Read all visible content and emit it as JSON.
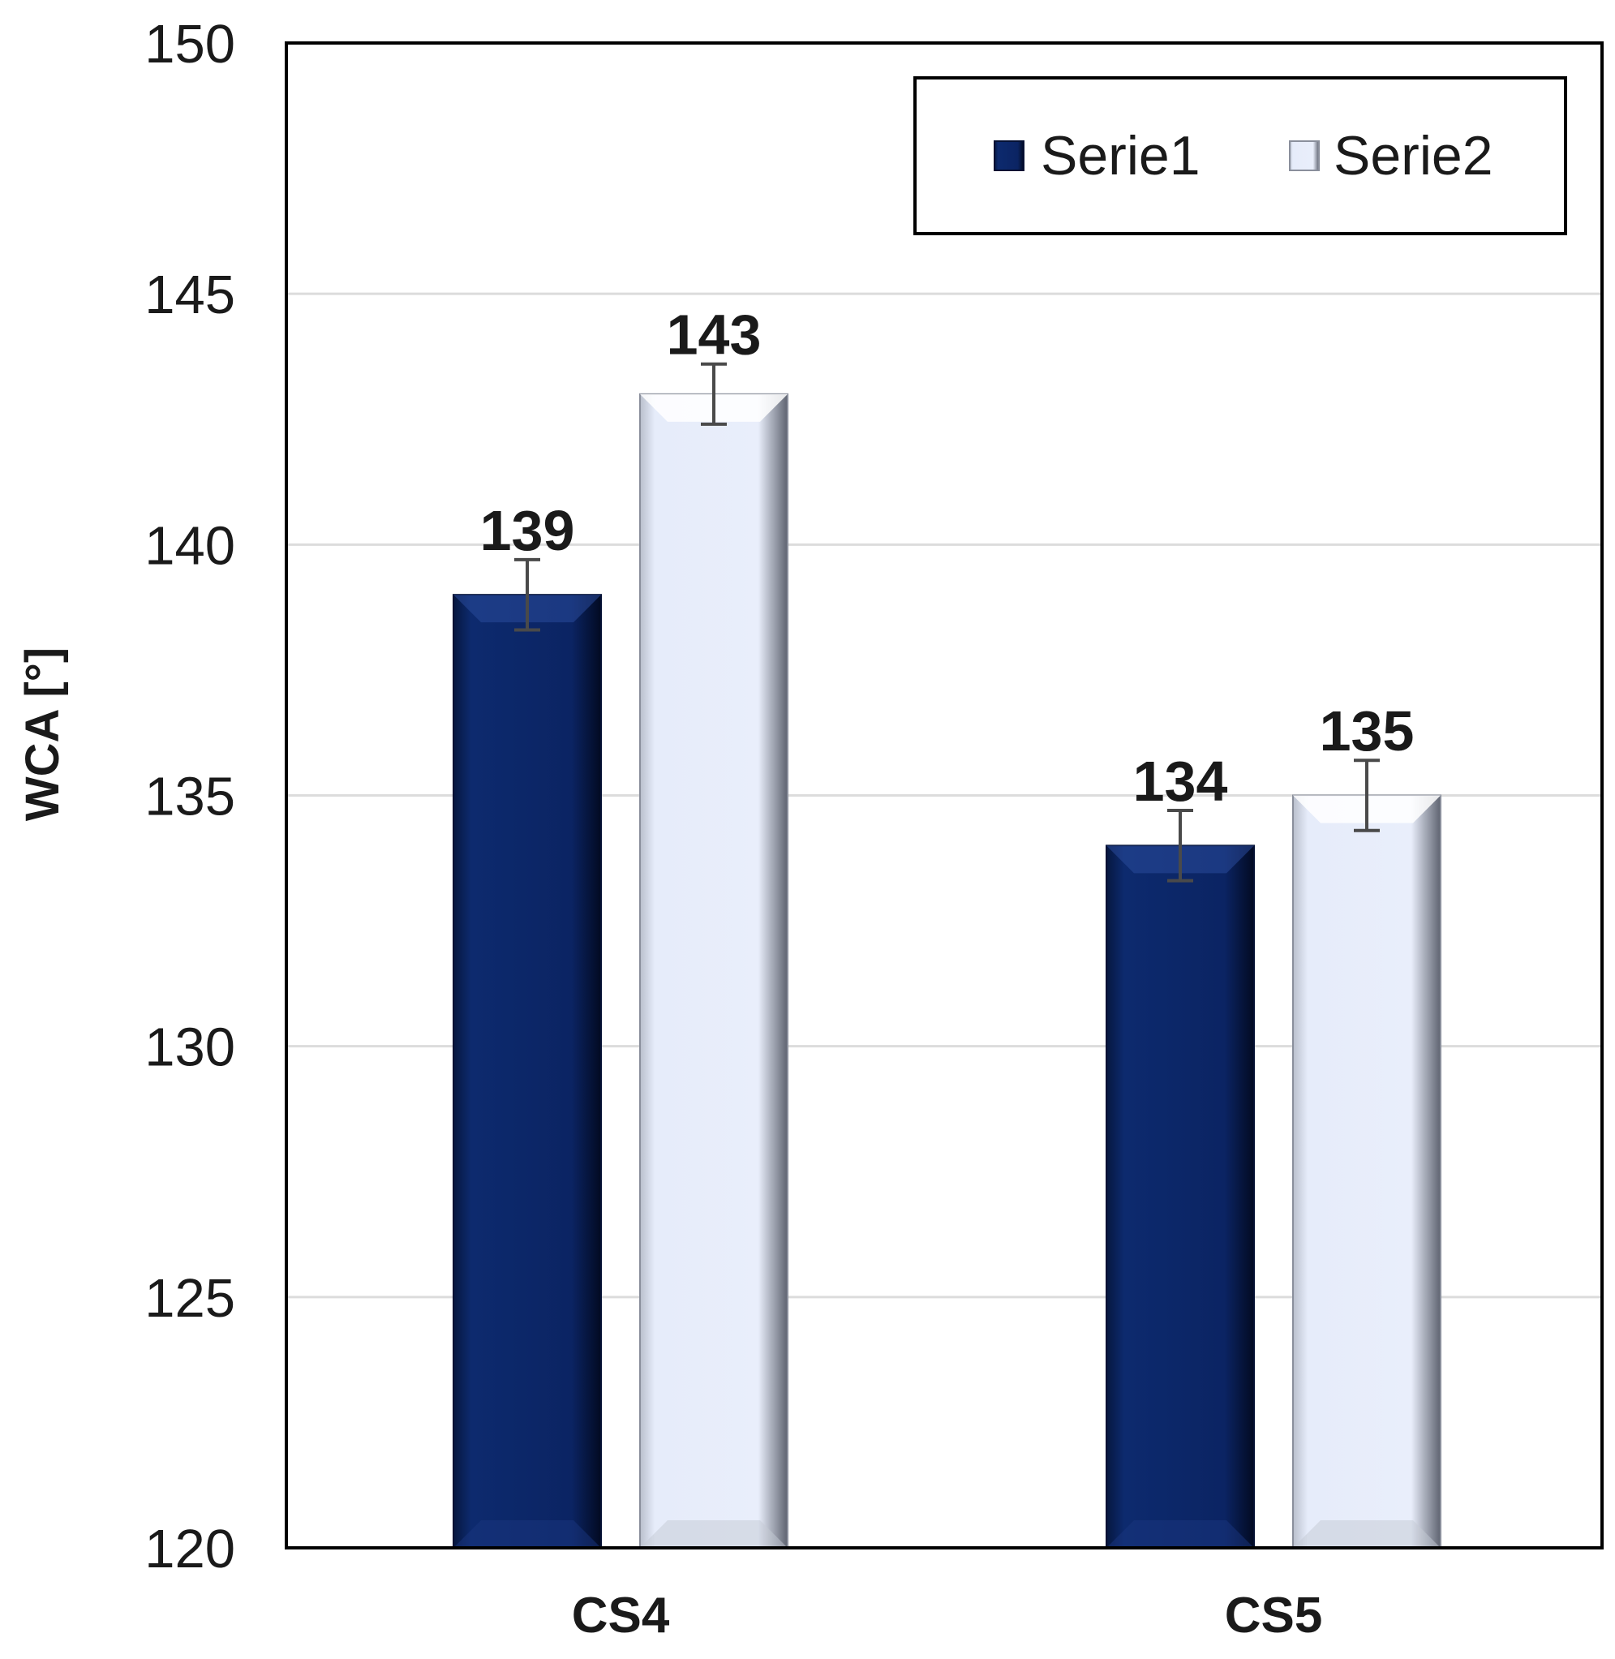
{
  "chart_data": {
    "type": "bar",
    "categories": [
      "CS4",
      "CS5"
    ],
    "series": [
      {
        "name": "Serie1",
        "values": [
          139,
          134
        ],
        "errors": [
          0.7,
          0.7
        ],
        "data_labels": [
          "139",
          "134"
        ],
        "color": "#0b2463"
      },
      {
        "name": "Serie2",
        "values": [
          143,
          135
        ],
        "errors": [
          0.6,
          0.7
        ],
        "data_labels": [
          "143",
          "135"
        ],
        "color": "#e6ecfa"
      }
    ],
    "title": "",
    "xlabel": "",
    "ylabel": "WCA [°]",
    "ylim": [
      120,
      150
    ],
    "yticks": [
      120,
      125,
      130,
      135,
      140,
      145,
      150
    ],
    "ytick_labels": [
      "120",
      "125",
      "130",
      "135",
      "140",
      "145",
      "150"
    ],
    "grid": "horizontal",
    "legend": "top-right",
    "colors": {
      "gridline": "#dcdcdc",
      "frame": "#000000",
      "error_bar": "#4a4a4a"
    }
  }
}
